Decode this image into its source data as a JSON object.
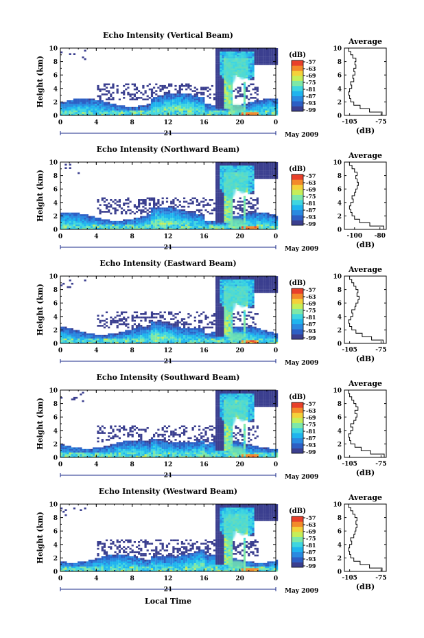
{
  "figure": {
    "xlabel": "Local Time",
    "date_label": "May 2009",
    "day_label": "21"
  },
  "colorbar": {
    "unit": "(dB)",
    "ticks": [
      "-57",
      "-63",
      "-69",
      "-75",
      "-81",
      "-87",
      "-93",
      "-99"
    ],
    "vmin": -99,
    "vmax": -57,
    "colors": [
      "#3b3f8f",
      "#2d5fc4",
      "#2a8ae0",
      "#1fb4ee",
      "#3fd6e0",
      "#7de8a8",
      "#c6ee58",
      "#f4d13a",
      "#f38a2a",
      "#e8402a"
    ]
  },
  "average_panel": {
    "title": "Average",
    "xlabel": "(dB)"
  },
  "chart_data": [
    {
      "type": "heatmap",
      "title": "Echo Intensity (Vertical Beam)",
      "ylabel": "Height (km)",
      "x_ticks": [
        "0",
        "4",
        "8",
        "12",
        "16",
        "20",
        "0"
      ],
      "xlim": [
        0,
        24
      ],
      "y_ticks": [
        "0",
        "2",
        "4",
        "6",
        "8",
        "10"
      ],
      "ylim": [
        0,
        10
      ],
      "profile": {
        "x_ticks": [
          "-105",
          "-75"
        ],
        "xlim": [
          -110,
          -70
        ],
        "height": [
          0,
          0.5,
          1,
          1.5,
          2,
          2.5,
          3,
          3.5,
          4,
          4.5,
          5,
          5.5,
          6,
          6.5,
          7,
          7.5,
          8,
          8.5,
          9,
          9.5,
          10
        ],
        "db": [
          -74,
          -86,
          -95,
          -101,
          -104,
          -105,
          -106,
          -105,
          -103,
          -104,
          -101,
          -102,
          -100,
          -101,
          -99,
          -100,
          -99,
          -102,
          -104,
          -106,
          -107
        ]
      }
    },
    {
      "type": "heatmap",
      "title": "Echo Intensity (Northward Beam)",
      "ylabel": "Height (km)",
      "x_ticks": [
        "0",
        "4",
        "8",
        "12",
        "16",
        "20",
        "0"
      ],
      "xlim": [
        0,
        24
      ],
      "y_ticks": [
        "0",
        "2",
        "4",
        "6",
        "8",
        "10"
      ],
      "ylim": [
        0,
        10
      ],
      "profile": {
        "x_ticks": [
          "-100",
          "-80"
        ],
        "xlim": [
          -108,
          -75
        ],
        "height": [
          0,
          0.5,
          1,
          1.5,
          2,
          2.5,
          3,
          3.5,
          4,
          4.5,
          5,
          5.5,
          6,
          6.5,
          7,
          7.5,
          8,
          8.5,
          9,
          9.5,
          10
        ],
        "db": [
          -77,
          -88,
          -96,
          -100,
          -102,
          -103,
          -104,
          -103,
          -101,
          -102,
          -100,
          -99,
          -98,
          -97,
          -98,
          -99,
          -98,
          -100,
          -102,
          -104,
          -105
        ]
      }
    },
    {
      "type": "heatmap",
      "title": "Echo Intensity (Eastward Beam)",
      "ylabel": "Height (km)",
      "x_ticks": [
        "0",
        "4",
        "8",
        "12",
        "16",
        "20",
        "0"
      ],
      "xlim": [
        0,
        24
      ],
      "y_ticks": [
        "0",
        "2",
        "4",
        "6",
        "8",
        "10"
      ],
      "ylim": [
        0,
        10
      ],
      "profile": {
        "x_ticks": [
          "-105",
          "-75"
        ],
        "xlim": [
          -110,
          -70
        ],
        "height": [
          0,
          0.5,
          1,
          1.5,
          2,
          2.5,
          3,
          3.5,
          4,
          4.5,
          5,
          5.5,
          6,
          6.5,
          7,
          7.5,
          8,
          8.5,
          9,
          9.5,
          10
        ],
        "db": [
          -73,
          -84,
          -93,
          -99,
          -103,
          -105,
          -106,
          -104,
          -102,
          -103,
          -100,
          -99,
          -97,
          -96,
          -98,
          -97,
          -99,
          -101,
          -103,
          -105,
          -106
        ]
      }
    },
    {
      "type": "heatmap",
      "title": "Echo Intensity (Southward Beam)",
      "ylabel": "Height (km)",
      "x_ticks": [
        "0",
        "4",
        "8",
        "12",
        "16",
        "20",
        "0"
      ],
      "xlim": [
        0,
        24
      ],
      "y_ticks": [
        "0",
        "2",
        "4",
        "6",
        "8",
        "10"
      ],
      "ylim": [
        0,
        10
      ],
      "profile": {
        "x_ticks": [
          "-105",
          "-75"
        ],
        "xlim": [
          -110,
          -70
        ],
        "height": [
          0,
          0.5,
          1,
          1.5,
          2,
          2.5,
          3,
          3.5,
          4,
          4.5,
          5,
          5.5,
          6,
          6.5,
          7,
          7.5,
          8,
          8.5,
          9,
          9.5,
          10
        ],
        "db": [
          -72,
          -85,
          -94,
          -100,
          -104,
          -105,
          -106,
          -104,
          -102,
          -104,
          -101,
          -99,
          -98,
          -100,
          -97,
          -99,
          -101,
          -103,
          -105,
          -106,
          -107
        ]
      }
    },
    {
      "type": "heatmap",
      "title": "Echo Intensity (Westward Beam)",
      "ylabel": "Height (km)",
      "x_ticks": [
        "0",
        "4",
        "8",
        "12",
        "16",
        "20",
        "0"
      ],
      "xlim": [
        0,
        24
      ],
      "y_ticks": [
        "0",
        "2",
        "4",
        "6",
        "8",
        "10"
      ],
      "ylim": [
        0,
        10
      ],
      "profile": {
        "x_ticks": [
          "-105",
          "-75"
        ],
        "xlim": [
          -110,
          -70
        ],
        "height": [
          0,
          0.5,
          1,
          1.5,
          2,
          2.5,
          3,
          3.5,
          4,
          4.5,
          5,
          5.5,
          6,
          6.5,
          7,
          7.5,
          8,
          8.5,
          9,
          9.5,
          10
        ],
        "db": [
          -74,
          -86,
          -95,
          -101,
          -104,
          -105,
          -106,
          -105,
          -103,
          -104,
          -101,
          -100,
          -99,
          -98,
          -99,
          -98,
          -100,
          -102,
          -104,
          -106,
          -107
        ]
      }
    }
  ]
}
